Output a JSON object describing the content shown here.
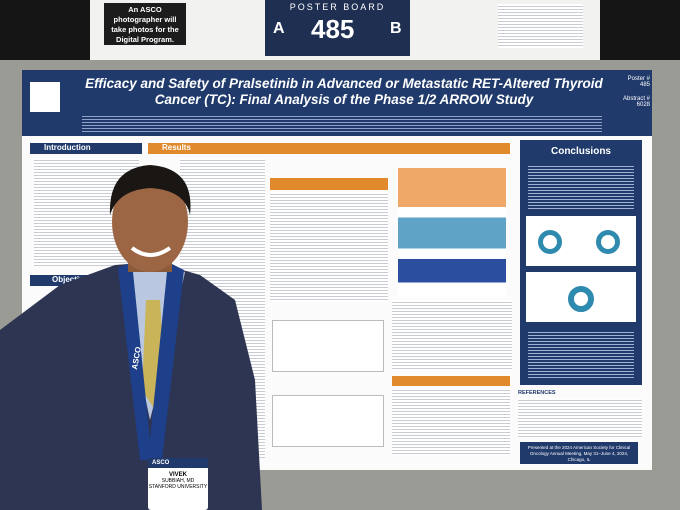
{
  "sign": {
    "text": "An ASCO photographer will take photos for the Digital Program."
  },
  "board": {
    "heading": "POSTER BOARD",
    "left": "A",
    "number": "485",
    "right": "B"
  },
  "poster": {
    "title": "Efficacy and Safety of Pralsetinib in Advanced or Metastatic RET-Altered Thyroid Cancer (TC): Final Analysis of the Phase 1/2 ARROW Study",
    "poster_no": "Poster # 485",
    "abstract_no": "Abstract # 6028",
    "sections": {
      "introduction": "Introduction",
      "results": "Results",
      "objective": "Objective",
      "conclusions": "Conclusions",
      "references": "REFERENCES"
    },
    "footer": "Presented at the 2024 American Society for Clinical Oncology Annual Meeting, May 31–June 4, 2024, Chicago, IL"
  },
  "badge": {
    "org": "ASCO",
    "first": "VIVEK",
    "last": "SUBBIAH, MD",
    "affiliation": "STANFORD UNIVERSITY"
  },
  "lanyard": "ASCO"
}
